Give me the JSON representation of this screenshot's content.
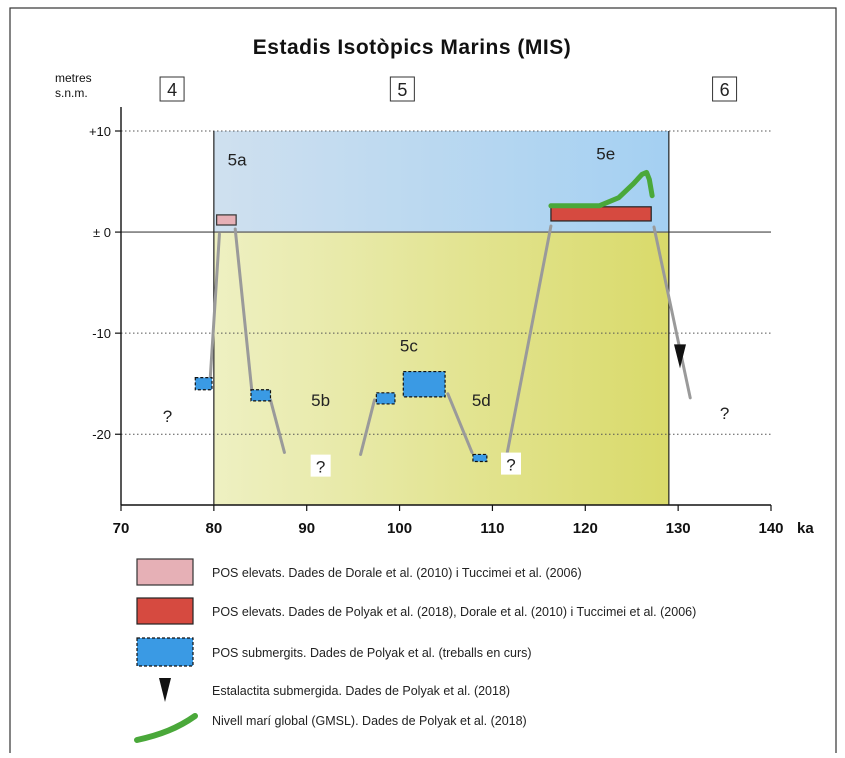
{
  "chart_data": {
    "type": "line",
    "title": "Estadis Isotòpics Marins (MIS)",
    "ylabel_line1": "metres",
    "ylabel_line2": "s.n.m.",
    "xunit": "ka",
    "xlim": [
      70,
      140
    ],
    "ylim": [
      -27,
      10
    ],
    "xticks": [
      {
        "value": 70,
        "label": "70"
      },
      {
        "value": 80,
        "label": "80"
      },
      {
        "value": 90,
        "label": "90"
      },
      {
        "value": 100,
        "label": "100"
      },
      {
        "value": 110,
        "label": "110"
      },
      {
        "value": 120,
        "label": "120"
      },
      {
        "value": 130,
        "label": "130"
      },
      {
        "value": 140,
        "label": "140"
      }
    ],
    "yticks": [
      {
        "value": 10,
        "label": "+10"
      },
      {
        "value": 0,
        "label": "± 0"
      },
      {
        "value": -10,
        "label": "-10"
      },
      {
        "value": -20,
        "label": "-20"
      }
    ],
    "grid": "dotted horizontal at ±10 and -20",
    "stage_boundaries": [
      80,
      129
    ],
    "stage_boxes": [
      {
        "label": "4",
        "x": 75.5
      },
      {
        "label": "5",
        "x": 100.3
      },
      {
        "label": "6",
        "x": 135
      }
    ],
    "substage_labels": [
      {
        "label": "5a",
        "x": 82.5,
        "y": 6.6
      },
      {
        "label": "5b",
        "x": 91.5,
        "y": -17.2
      },
      {
        "label": "5c",
        "x": 101,
        "y": -11.8
      },
      {
        "label": "5d",
        "x": 108.8,
        "y": -17.2
      },
      {
        "label": "5e",
        "x": 122.2,
        "y": 7.2
      }
    ],
    "question_marks": [
      {
        "label": "?",
        "x": 75,
        "y": -18.5
      },
      {
        "label": "?",
        "x": 91.5,
        "y": -23.5
      },
      {
        "label": "?",
        "x": 112,
        "y": -23.3
      },
      {
        "label": "?",
        "x": 135,
        "y": -18.2
      }
    ],
    "colors": {
      "upper_zone": "#cfe0ef",
      "upper_zone_right": "#a4d0f2",
      "lower_zone": "#eef0c2",
      "lower_zone_right": "#d9da6a",
      "gray_line": "#9a9a9a",
      "pink_bar": "#e6b0b6",
      "red_bar": "#d64a40",
      "blue_bar": "#3a9ae4",
      "green_line": "#4aa83a"
    },
    "series": [
      {
        "kind": "pos_elevat_pink",
        "bars": [
          {
            "x0": 80.3,
            "x1": 82.4,
            "y0": 0.7,
            "y1": 1.7
          }
        ]
      },
      {
        "kind": "pos_elevat_red",
        "bars": [
          {
            "x0": 116.3,
            "x1": 127.1,
            "y0": 1.1,
            "y1": 2.5
          }
        ]
      },
      {
        "kind": "pos_submergit_blue",
        "bars": [
          {
            "x0": 78,
            "x1": 79.8,
            "y0": -15.6,
            "y1": -14.4
          },
          {
            "x0": 84,
            "x1": 86.1,
            "y0": -16.7,
            "y1": -15.6
          },
          {
            "x0": 97.5,
            "x1": 99.5,
            "y0": -17,
            "y1": -15.9
          },
          {
            "x0": 100.4,
            "x1": 104.9,
            "y0": -16.3,
            "y1": -13.8
          },
          {
            "x0": 107.9,
            "x1": 109.4,
            "y0": -22.7,
            "y1": -22
          },
          {
            "x0": 127.1,
            "x1": 127.1,
            "y0": 0,
            "y1": 0
          }
        ]
      },
      {
        "kind": "gray_trend",
        "segments": [
          [
            [
              79.6,
              -14.6
            ],
            [
              80.6,
              -0.2
            ]
          ],
          [
            [
              82.3,
              0.3
            ],
            [
              84.1,
              -15.8
            ]
          ],
          [
            [
              86.1,
              -16.6
            ],
            [
              87.6,
              -21.8
            ]
          ],
          [
            [
              95.8,
              -22
            ],
            [
              97.3,
              -16.6
            ]
          ],
          [
            [
              105.2,
              -16
            ],
            [
              107.8,
              -21.8
            ]
          ],
          [
            [
              111.6,
              -21.8
            ],
            [
              116.3,
              0.6
            ]
          ],
          [
            [
              127.4,
              0.5
            ],
            [
              131.3,
              -16.4
            ]
          ]
        ]
      },
      {
        "kind": "gmsl_green",
        "points": [
          [
            116.3,
            2.6
          ],
          [
            121.5,
            2.6
          ],
          [
            123.6,
            3.4
          ],
          [
            125.2,
            4.8
          ],
          [
            126.1,
            5.7
          ],
          [
            126.6,
            5.9
          ],
          [
            126.9,
            5.2
          ],
          [
            127.2,
            3.6
          ]
        ]
      },
      {
        "kind": "stalactite",
        "x": 130.2,
        "y": -12.3
      }
    ],
    "legend": [
      {
        "kind": "pink",
        "text": "POS elevats.  Dades de Dorale et al. (2010) i Tuccimei et al. (2006)"
      },
      {
        "kind": "red",
        "text": "POS elevats.  Dades de Polyak et al. (2018), Dorale et al. (2010) i Tuccimei et al. (2006)"
      },
      {
        "kind": "blue",
        "text": "POS submergits.  Dades de Polyak et al. (treballs en curs)"
      },
      {
        "kind": "triangle",
        "text": "Estalactita submergida.  Dades de Polyak et al. (2018)"
      },
      {
        "kind": "green",
        "text": "Nivell marí global (GMSL).  Dades de Polyak et al. (2018)"
      }
    ],
    "legend_placement": "bottom"
  }
}
